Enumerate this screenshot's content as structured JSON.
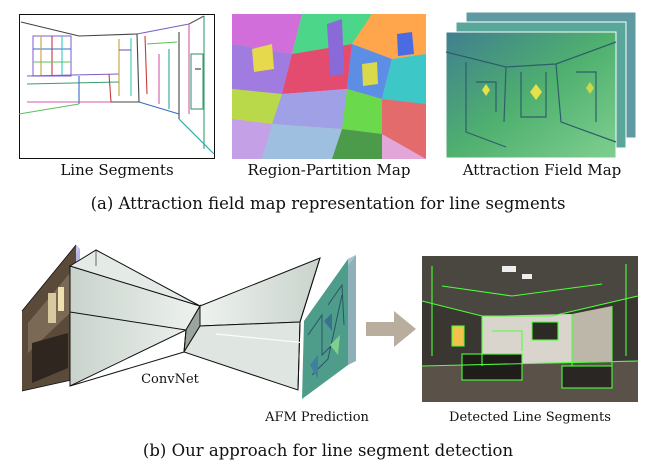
{
  "panel_a": {
    "labels": {
      "line_segments": "Line Segments",
      "region_partition": "Region-Partition Map",
      "attraction_field": "Attraction Field Map"
    },
    "caption": "(a)  Attraction field map representation for line segments"
  },
  "panel_b": {
    "network_label": "ConvNet",
    "afm_label": "AFM Prediction",
    "detected_label": "Detected Line Segments",
    "caption": "(b)  Our approach for line segment detection"
  },
  "colors": {
    "frame": "#111111",
    "network_face": "#d9e3dc",
    "arrow": "#b9ae9e",
    "detection_line": "#4dff3a"
  }
}
